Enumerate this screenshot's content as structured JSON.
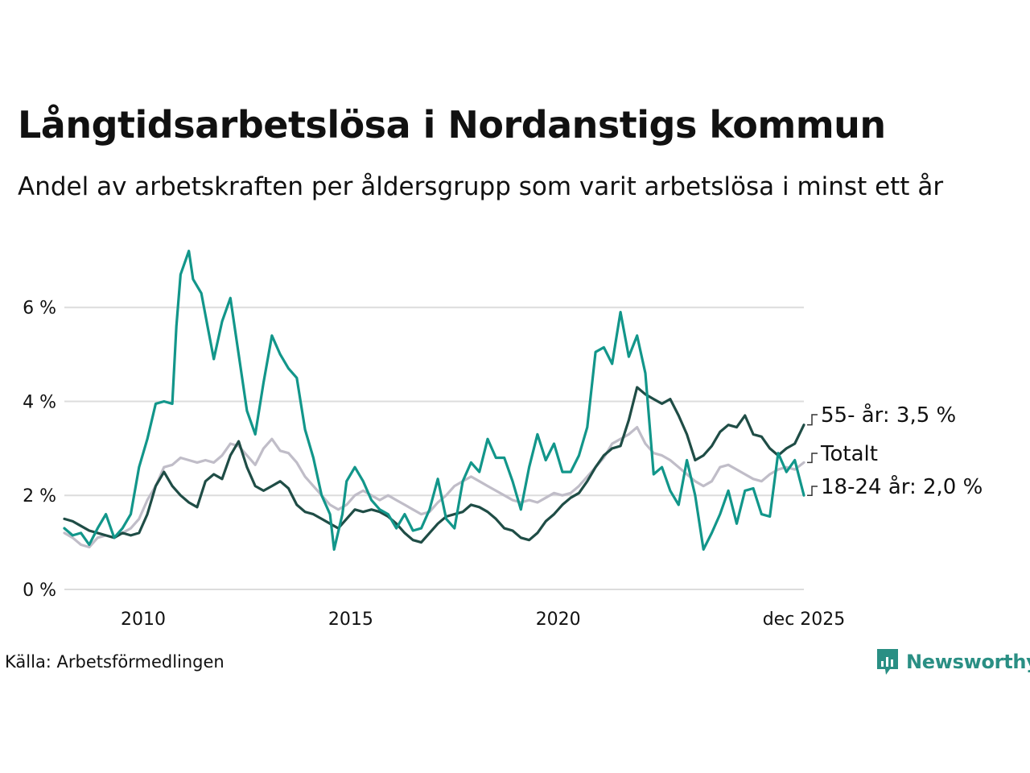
{
  "header": {
    "title": "Långtidsarbetslösa i Nordanstigs kommun",
    "subtitle": "Andel av arbetskraften per åldersgrupp som varit arbetslösa i minst ett år"
  },
  "footer": {
    "source": "Källa: Arbetsförmedlingen",
    "brand": "Newsworthy"
  },
  "colors": {
    "youth": "#12968a",
    "senior": "#1f4d46",
    "total": "#c0bdc8",
    "grid": "#dcdcdc",
    "brand": "#2a8f84"
  },
  "chart_data": {
    "type": "line",
    "title": "Långtidsarbetslösa i Nordanstigs kommun",
    "subtitle": "Andel av arbetskraften per åldersgrupp som varit arbetslösa i minst ett år",
    "xlabel": "",
    "ylabel": "",
    "x_range": [
      2008.1,
      2025.92
    ],
    "ylim": [
      0,
      7.4
    ],
    "y_ticks": [
      0,
      2,
      4,
      6
    ],
    "y_tick_labels": [
      "0 %",
      "2 %",
      "4 %",
      "6 %"
    ],
    "x_ticks": [
      2010,
      2015,
      2020,
      2025.92
    ],
    "x_tick_labels": [
      "2010",
      "2015",
      "2020",
      "dec 2025"
    ],
    "grid": true,
    "series": [
      {
        "name": "Totalt",
        "key": "total",
        "end_label": "Totalt",
        "points": [
          [
            2008.1,
            1.2
          ],
          [
            2008.3,
            1.1
          ],
          [
            2008.5,
            0.95
          ],
          [
            2008.7,
            0.9
          ],
          [
            2008.9,
            1.1
          ],
          [
            2009.1,
            1.15
          ],
          [
            2009.3,
            1.1
          ],
          [
            2009.5,
            1.2
          ],
          [
            2009.7,
            1.3
          ],
          [
            2009.9,
            1.5
          ],
          [
            2010.1,
            1.9
          ],
          [
            2010.3,
            2.2
          ],
          [
            2010.5,
            2.6
          ],
          [
            2010.7,
            2.65
          ],
          [
            2010.9,
            2.8
          ],
          [
            2011.1,
            2.75
          ],
          [
            2011.3,
            2.7
          ],
          [
            2011.5,
            2.75
          ],
          [
            2011.7,
            2.7
          ],
          [
            2011.9,
            2.85
          ],
          [
            2012.1,
            3.1
          ],
          [
            2012.3,
            3.05
          ],
          [
            2012.5,
            2.85
          ],
          [
            2012.7,
            2.65
          ],
          [
            2012.9,
            3.0
          ],
          [
            2013.1,
            3.2
          ],
          [
            2013.3,
            2.95
          ],
          [
            2013.5,
            2.9
          ],
          [
            2013.7,
            2.7
          ],
          [
            2013.9,
            2.4
          ],
          [
            2014.1,
            2.2
          ],
          [
            2014.3,
            2.0
          ],
          [
            2014.5,
            1.8
          ],
          [
            2014.7,
            1.7
          ],
          [
            2014.9,
            1.8
          ],
          [
            2015.1,
            2.0
          ],
          [
            2015.3,
            2.1
          ],
          [
            2015.5,
            2.0
          ],
          [
            2015.7,
            1.9
          ],
          [
            2015.9,
            2.0
          ],
          [
            2016.1,
            1.9
          ],
          [
            2016.3,
            1.8
          ],
          [
            2016.5,
            1.7
          ],
          [
            2016.7,
            1.6
          ],
          [
            2016.9,
            1.65
          ],
          [
            2017.1,
            1.85
          ],
          [
            2017.3,
            2.0
          ],
          [
            2017.5,
            2.2
          ],
          [
            2017.7,
            2.3
          ],
          [
            2017.9,
            2.4
          ],
          [
            2018.1,
            2.3
          ],
          [
            2018.3,
            2.2
          ],
          [
            2018.5,
            2.1
          ],
          [
            2018.7,
            2.0
          ],
          [
            2018.9,
            1.9
          ],
          [
            2019.1,
            1.85
          ],
          [
            2019.3,
            1.9
          ],
          [
            2019.5,
            1.85
          ],
          [
            2019.7,
            1.95
          ],
          [
            2019.9,
            2.05
          ],
          [
            2020.1,
            2.0
          ],
          [
            2020.3,
            2.05
          ],
          [
            2020.5,
            2.2
          ],
          [
            2020.7,
            2.4
          ],
          [
            2020.9,
            2.6
          ],
          [
            2021.1,
            2.8
          ],
          [
            2021.3,
            3.1
          ],
          [
            2021.5,
            3.2
          ],
          [
            2021.7,
            3.3
          ],
          [
            2021.9,
            3.45
          ],
          [
            2022.1,
            3.1
          ],
          [
            2022.3,
            2.9
          ],
          [
            2022.5,
            2.85
          ],
          [
            2022.7,
            2.75
          ],
          [
            2022.9,
            2.6
          ],
          [
            2023.1,
            2.45
          ],
          [
            2023.3,
            2.3
          ],
          [
            2023.5,
            2.2
          ],
          [
            2023.7,
            2.3
          ],
          [
            2023.9,
            2.6
          ],
          [
            2024.1,
            2.65
          ],
          [
            2024.3,
            2.55
          ],
          [
            2024.5,
            2.45
          ],
          [
            2024.7,
            2.35
          ],
          [
            2024.9,
            2.3
          ],
          [
            2025.1,
            2.45
          ],
          [
            2025.3,
            2.55
          ],
          [
            2025.5,
            2.6
          ],
          [
            2025.7,
            2.55
          ],
          [
            2025.92,
            2.7
          ]
        ]
      },
      {
        "name": "55- år",
        "key": "senior",
        "end_label": "55- år: 3,5 %",
        "points": [
          [
            2008.1,
            1.5
          ],
          [
            2008.3,
            1.45
          ],
          [
            2008.5,
            1.35
          ],
          [
            2008.7,
            1.25
          ],
          [
            2008.9,
            1.2
          ],
          [
            2009.1,
            1.15
          ],
          [
            2009.3,
            1.1
          ],
          [
            2009.5,
            1.2
          ],
          [
            2009.7,
            1.15
          ],
          [
            2009.9,
            1.2
          ],
          [
            2010.1,
            1.6
          ],
          [
            2010.3,
            2.2
          ],
          [
            2010.5,
            2.5
          ],
          [
            2010.7,
            2.2
          ],
          [
            2010.9,
            2.0
          ],
          [
            2011.1,
            1.85
          ],
          [
            2011.3,
            1.75
          ],
          [
            2011.5,
            2.3
          ],
          [
            2011.7,
            2.45
          ],
          [
            2011.9,
            2.35
          ],
          [
            2012.1,
            2.85
          ],
          [
            2012.3,
            3.15
          ],
          [
            2012.5,
            2.6
          ],
          [
            2012.7,
            2.2
          ],
          [
            2012.9,
            2.1
          ],
          [
            2013.1,
            2.2
          ],
          [
            2013.3,
            2.3
          ],
          [
            2013.5,
            2.15
          ],
          [
            2013.7,
            1.8
          ],
          [
            2013.9,
            1.65
          ],
          [
            2014.1,
            1.6
          ],
          [
            2014.3,
            1.5
          ],
          [
            2014.5,
            1.4
          ],
          [
            2014.7,
            1.3
          ],
          [
            2014.9,
            1.5
          ],
          [
            2015.1,
            1.7
          ],
          [
            2015.3,
            1.65
          ],
          [
            2015.5,
            1.7
          ],
          [
            2015.7,
            1.65
          ],
          [
            2015.9,
            1.55
          ],
          [
            2016.1,
            1.4
          ],
          [
            2016.3,
            1.2
          ],
          [
            2016.5,
            1.05
          ],
          [
            2016.7,
            1.0
          ],
          [
            2016.9,
            1.2
          ],
          [
            2017.1,
            1.4
          ],
          [
            2017.3,
            1.55
          ],
          [
            2017.5,
            1.6
          ],
          [
            2017.7,
            1.65
          ],
          [
            2017.9,
            1.8
          ],
          [
            2018.1,
            1.75
          ],
          [
            2018.3,
            1.65
          ],
          [
            2018.5,
            1.5
          ],
          [
            2018.7,
            1.3
          ],
          [
            2018.9,
            1.25
          ],
          [
            2019.1,
            1.1
          ],
          [
            2019.3,
            1.05
          ],
          [
            2019.5,
            1.2
          ],
          [
            2019.7,
            1.45
          ],
          [
            2019.9,
            1.6
          ],
          [
            2020.1,
            1.8
          ],
          [
            2020.3,
            1.95
          ],
          [
            2020.5,
            2.05
          ],
          [
            2020.7,
            2.3
          ],
          [
            2020.9,
            2.6
          ],
          [
            2021.1,
            2.85
          ],
          [
            2021.3,
            3.0
          ],
          [
            2021.5,
            3.05
          ],
          [
            2021.7,
            3.6
          ],
          [
            2021.9,
            4.3
          ],
          [
            2022.1,
            4.15
          ],
          [
            2022.3,
            4.05
          ],
          [
            2022.5,
            3.95
          ],
          [
            2022.7,
            4.05
          ],
          [
            2022.9,
            3.7
          ],
          [
            2023.1,
            3.3
          ],
          [
            2023.3,
            2.75
          ],
          [
            2023.5,
            2.85
          ],
          [
            2023.7,
            3.05
          ],
          [
            2023.9,
            3.35
          ],
          [
            2024.1,
            3.5
          ],
          [
            2024.3,
            3.45
          ],
          [
            2024.5,
            3.7
          ],
          [
            2024.7,
            3.3
          ],
          [
            2024.9,
            3.25
          ],
          [
            2025.1,
            3.0
          ],
          [
            2025.3,
            2.85
          ],
          [
            2025.5,
            3.0
          ],
          [
            2025.7,
            3.1
          ],
          [
            2025.92,
            3.5
          ]
        ]
      },
      {
        "name": "18-24 år",
        "key": "youth",
        "end_label": "18-24 år: 2,0 %",
        "points": [
          [
            2008.1,
            1.3
          ],
          [
            2008.3,
            1.15
          ],
          [
            2008.5,
            1.2
          ],
          [
            2008.7,
            0.95
          ],
          [
            2008.9,
            1.3
          ],
          [
            2009.1,
            1.6
          ],
          [
            2009.3,
            1.1
          ],
          [
            2009.5,
            1.3
          ],
          [
            2009.7,
            1.6
          ],
          [
            2009.9,
            2.6
          ],
          [
            2010.1,
            3.2
          ],
          [
            2010.3,
            3.95
          ],
          [
            2010.5,
            4.0
          ],
          [
            2010.7,
            3.95
          ],
          [
            2010.8,
            5.6
          ],
          [
            2010.9,
            6.7
          ],
          [
            2011.1,
            7.2
          ],
          [
            2011.2,
            6.6
          ],
          [
            2011.4,
            6.3
          ],
          [
            2011.55,
            5.6
          ],
          [
            2011.7,
            4.9
          ],
          [
            2011.9,
            5.7
          ],
          [
            2012.1,
            6.2
          ],
          [
            2012.3,
            5.0
          ],
          [
            2012.5,
            3.8
          ],
          [
            2012.7,
            3.3
          ],
          [
            2012.9,
            4.4
          ],
          [
            2013.1,
            5.4
          ],
          [
            2013.3,
            5.0
          ],
          [
            2013.5,
            4.7
          ],
          [
            2013.7,
            4.5
          ],
          [
            2013.9,
            3.4
          ],
          [
            2014.1,
            2.8
          ],
          [
            2014.3,
            2.0
          ],
          [
            2014.5,
            1.6
          ],
          [
            2014.6,
            0.85
          ],
          [
            2014.8,
            1.6
          ],
          [
            2014.9,
            2.3
          ],
          [
            2015.1,
            2.6
          ],
          [
            2015.3,
            2.3
          ],
          [
            2015.5,
            1.9
          ],
          [
            2015.7,
            1.7
          ],
          [
            2015.9,
            1.6
          ],
          [
            2016.1,
            1.3
          ],
          [
            2016.3,
            1.6
          ],
          [
            2016.5,
            1.25
          ],
          [
            2016.7,
            1.3
          ],
          [
            2016.9,
            1.7
          ],
          [
            2017.1,
            2.35
          ],
          [
            2017.3,
            1.5
          ],
          [
            2017.5,
            1.3
          ],
          [
            2017.7,
            2.3
          ],
          [
            2017.9,
            2.7
          ],
          [
            2018.1,
            2.5
          ],
          [
            2018.3,
            3.2
          ],
          [
            2018.5,
            2.8
          ],
          [
            2018.7,
            2.8
          ],
          [
            2018.9,
            2.3
          ],
          [
            2019.1,
            1.7
          ],
          [
            2019.3,
            2.6
          ],
          [
            2019.5,
            3.3
          ],
          [
            2019.7,
            2.75
          ],
          [
            2019.9,
            3.1
          ],
          [
            2020.1,
            2.5
          ],
          [
            2020.3,
            2.5
          ],
          [
            2020.5,
            2.85
          ],
          [
            2020.7,
            3.45
          ],
          [
            2020.9,
            5.05
          ],
          [
            2021.1,
            5.15
          ],
          [
            2021.3,
            4.8
          ],
          [
            2021.5,
            5.9
          ],
          [
            2021.7,
            4.95
          ],
          [
            2021.9,
            5.4
          ],
          [
            2022.1,
            4.6
          ],
          [
            2022.3,
            2.45
          ],
          [
            2022.5,
            2.6
          ],
          [
            2022.7,
            2.1
          ],
          [
            2022.9,
            1.8
          ],
          [
            2023.1,
            2.75
          ],
          [
            2023.3,
            2.0
          ],
          [
            2023.5,
            0.85
          ],
          [
            2023.7,
            1.2
          ],
          [
            2023.9,
            1.6
          ],
          [
            2024.1,
            2.1
          ],
          [
            2024.3,
            1.4
          ],
          [
            2024.5,
            2.1
          ],
          [
            2024.7,
            2.15
          ],
          [
            2024.9,
            1.6
          ],
          [
            2025.1,
            1.55
          ],
          [
            2025.3,
            2.9
          ],
          [
            2025.5,
            2.5
          ],
          [
            2025.7,
            2.75
          ],
          [
            2025.92,
            2.0
          ]
        ]
      }
    ]
  }
}
